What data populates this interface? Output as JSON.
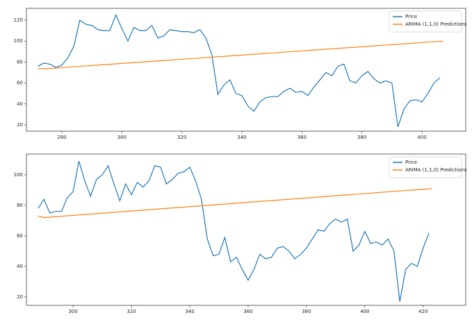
{
  "chart_data": [
    {
      "type": "line",
      "xlim": [
        268.2,
        414.6
      ],
      "ylim": [
        14,
        131.3
      ],
      "xticks": [
        280,
        300,
        320,
        340,
        360,
        380,
        400
      ],
      "yticks": [
        20,
        40,
        60,
        80,
        100,
        120
      ],
      "legend": "upper right",
      "series": [
        {
          "name": "Price",
          "color": "#1f77b4",
          "x": [
            272,
            274,
            276,
            278,
            280,
            282,
            284,
            286,
            288,
            290,
            292,
            294,
            296,
            298,
            300,
            302,
            304,
            306,
            308,
            310,
            312,
            314,
            316,
            318,
            320,
            322,
            324,
            326,
            328,
            330,
            332,
            334,
            336,
            338,
            340,
            342,
            344,
            346,
            348,
            350,
            352,
            354,
            356,
            358,
            360,
            362,
            364,
            366,
            368,
            370,
            372,
            374,
            376,
            378,
            380,
            382,
            384,
            386,
            388,
            390,
            392,
            394,
            396,
            398,
            400,
            402,
            404,
            406
          ],
          "values": [
            76,
            79,
            78,
            75,
            77,
            84,
            95,
            120,
            116,
            115,
            111,
            110,
            110,
            125,
            112,
            100,
            113,
            110,
            110,
            115,
            103,
            105,
            111,
            110,
            109,
            109,
            108,
            111,
            103,
            87,
            49,
            58,
            63,
            50,
            48,
            38,
            33,
            42,
            46,
            47,
            47,
            52,
            55,
            51,
            52,
            48,
            56,
            63,
            70,
            67,
            76,
            78,
            62,
            60,
            67,
            71,
            64,
            60,
            62,
            60,
            18,
            35,
            43,
            44,
            42,
            50,
            60,
            65
          ]
        },
        {
          "name": "ARIMA (1,1,0) Predictions",
          "color": "#ff7f0e",
          "x": [
            272,
            274,
            407
          ],
          "values": [
            74,
            73.5,
            100
          ]
        }
      ]
    },
    {
      "type": "line",
      "xlim": [
        284,
        434.6
      ],
      "ylim": [
        14.5,
        113.6
      ],
      "xticks": [
        300,
        320,
        340,
        360,
        380,
        400,
        420
      ],
      "yticks": [
        20,
        40,
        60,
        80,
        100
      ],
      "legend": "upper right",
      "series": [
        {
          "name": "Price",
          "color": "#1f77b4",
          "x": [
            288,
            290,
            292,
            294,
            296,
            298,
            300,
            302,
            304,
            306,
            308,
            310,
            312,
            314,
            316,
            318,
            320,
            322,
            324,
            326,
            328,
            330,
            332,
            334,
            336,
            338,
            340,
            342,
            344,
            346,
            348,
            350,
            352,
            354,
            356,
            358,
            360,
            362,
            364,
            366,
            368,
            370,
            372,
            374,
            376,
            378,
            380,
            382,
            384,
            386,
            388,
            390,
            392,
            394,
            396,
            398,
            400,
            402,
            404,
            406,
            408,
            410,
            412,
            414,
            416,
            418,
            420,
            422
          ],
          "values": [
            78,
            84,
            75,
            76,
            76,
            85,
            89,
            109,
            96,
            86,
            97,
            100,
            106,
            94,
            83,
            94,
            87,
            95,
            92,
            96,
            106,
            105,
            94,
            97,
            101,
            102,
            105,
            96,
            84,
            58,
            47,
            48,
            59,
            43,
            46,
            38,
            31,
            38,
            48,
            45,
            46,
            52,
            53,
            50,
            45,
            48,
            52,
            58,
            64,
            63,
            68,
            71,
            69,
            71,
            50,
            54,
            63,
            55,
            56,
            54,
            58,
            50,
            17,
            38,
            42,
            40,
            52,
            62
          ]
        },
        {
          "name": "ARIMA (1,1,0) Predictions",
          "color": "#ff7f0e",
          "x": [
            288,
            290,
            423
          ],
          "values": [
            73,
            72,
            91
          ]
        }
      ]
    }
  ]
}
